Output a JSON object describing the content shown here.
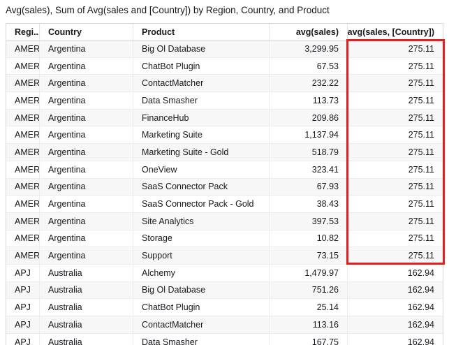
{
  "title": "Avg(sales), Sum of Avg(sales and [Country]) by Region, Country, and Product",
  "annotation": {
    "highlight_color": "#e02020",
    "highlighted_column": "avg(sales, [Country])",
    "highlighted_rows": "Argentina rows 1-13"
  },
  "colors": {
    "text": "#16191f",
    "row_stripe": "#f7f7f7",
    "border": "#d6d6d6"
  },
  "table": {
    "columns": [
      {
        "label": "Regi..."
      },
      {
        "label": "Country"
      },
      {
        "label": "Product"
      },
      {
        "label": "avg(sales)"
      },
      {
        "label": "avg(sales, [Country])"
      }
    ],
    "rows": [
      [
        "AMER",
        "Argentina",
        "Big Ol Database",
        "3,299.95",
        "275.11"
      ],
      [
        "AMER",
        "Argentina",
        "ChatBot Plugin",
        "67.53",
        "275.11"
      ],
      [
        "AMER",
        "Argentina",
        "ContactMatcher",
        "232.22",
        "275.11"
      ],
      [
        "AMER",
        "Argentina",
        "Data Smasher",
        "113.73",
        "275.11"
      ],
      [
        "AMER",
        "Argentina",
        "FinanceHub",
        "209.86",
        "275.11"
      ],
      [
        "AMER",
        "Argentina",
        "Marketing Suite",
        "1,137.94",
        "275.11"
      ],
      [
        "AMER",
        "Argentina",
        "Marketing Suite - Gold",
        "518.79",
        "275.11"
      ],
      [
        "AMER",
        "Argentina",
        "OneView",
        "323.41",
        "275.11"
      ],
      [
        "AMER",
        "Argentina",
        "SaaS Connector Pack",
        "67.93",
        "275.11"
      ],
      [
        "AMER",
        "Argentina",
        "SaaS Connector Pack - Gold",
        "38.43",
        "275.11"
      ],
      [
        "AMER",
        "Argentina",
        "Site Analytics",
        "397.53",
        "275.11"
      ],
      [
        "AMER",
        "Argentina",
        "Storage",
        "10.82",
        "275.11"
      ],
      [
        "AMER",
        "Argentina",
        "Support",
        "73.15",
        "275.11"
      ],
      [
        "APJ",
        "Australia",
        "Alchemy",
        "1,479.97",
        "162.94"
      ],
      [
        "APJ",
        "Australia",
        "Big Ol Database",
        "751.26",
        "162.94"
      ],
      [
        "APJ",
        "Australia",
        "ChatBot Plugin",
        "25.14",
        "162.94"
      ],
      [
        "APJ",
        "Australia",
        "ContactMatcher",
        "113.16",
        "162.94"
      ],
      [
        "APJ",
        "Australia",
        "Data Smasher",
        "167.75",
        "162.94"
      ]
    ]
  }
}
